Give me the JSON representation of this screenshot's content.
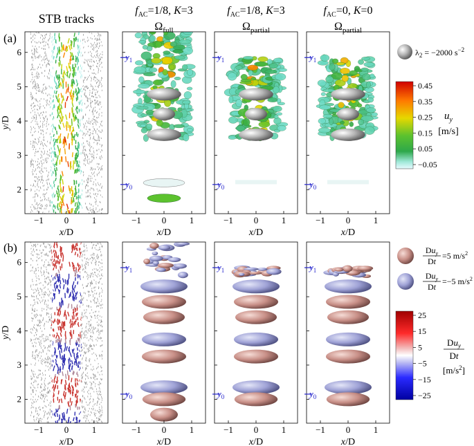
{
  "figure": {
    "row_labels": [
      "(a)",
      "(b)"
    ],
    "column_titles": [
      {
        "main": "STB tracks",
        "sub": ""
      },
      {
        "main": "f_AC=1/8, K=3",
        "sub": "Ω_full"
      },
      {
        "main": "f_AC=1/8, K=3",
        "sub": "Ω_partial"
      },
      {
        "main": "f_AC=0, K=0",
        "sub": "Ω_partial"
      }
    ],
    "y0_label": "y0",
    "y1_label": "y1",
    "legend_a_sphere": "λ2 = −2000 s⁻²",
    "legend_b_sphere_pos": "Du_y/Dt =5 m/s²",
    "legend_b_sphere_neg": "Du_y/Dt =−5 m/s²"
  },
  "chart_data": [
    {
      "type": "scatter",
      "panel": "a",
      "xlabel": "x/D",
      "ylabel": "y/D",
      "xlim": [
        -1.5,
        1.5
      ],
      "ylim": [
        1.3,
        6.6
      ],
      "x_ticks": [
        "−1",
        "0",
        "1"
      ],
      "y_ticks": [
        "2",
        "3",
        "4",
        "5",
        "6"
      ],
      "colorbar": {
        "quantity": "u_y",
        "unit": "[m/s]",
        "ticks": [
          "0.45",
          "0.35",
          "0.25",
          "0.15",
          "0.05",
          "−0.05"
        ],
        "range": [
          -0.05,
          0.45
        ]
      }
    },
    {
      "type": "scatter",
      "panel": "b",
      "xlabel": "x/D",
      "ylabel": "y/D",
      "xlim": [
        -1.5,
        1.5
      ],
      "ylim": [
        1.3,
        6.6
      ],
      "x_ticks": [
        "−1",
        "0",
        "1"
      ],
      "y_ticks": [
        "2",
        "3",
        "4",
        "5",
        "6"
      ],
      "colorbar": {
        "quantity": "Du_y/Dt",
        "unit": "[m/s²]",
        "ticks": [
          "25",
          "15",
          "5",
          "−5",
          "−15",
          "−25"
        ],
        "range": [
          -25,
          25
        ]
      }
    }
  ]
}
